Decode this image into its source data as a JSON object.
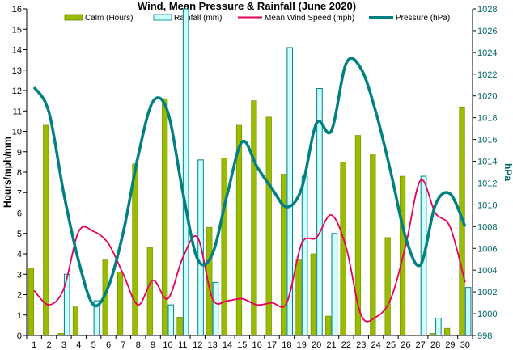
{
  "chart_data": {
    "type": "bar",
    "title": "Wind, Mean Pressure & Rainfall (June 2020)",
    "ylabel": "Hours/mph/mm",
    "y2label": "hPa",
    "ylim": [
      0,
      16
    ],
    "y2lim": [
      998,
      1028
    ],
    "yticks": [
      "0",
      "1",
      "2",
      "3",
      "4",
      "5",
      "6",
      "7",
      "8",
      "9",
      "10",
      "11",
      "12",
      "13",
      "14",
      "15",
      "16"
    ],
    "y2ticks": [
      "998",
      "1000",
      "1002",
      "1004",
      "1006",
      "1008",
      "1010",
      "1012",
      "1014",
      "1016",
      "1018",
      "1020",
      "1022",
      "1024",
      "1026",
      "1028"
    ],
    "categories": [
      "1",
      "2",
      "3",
      "4",
      "5",
      "6",
      "7",
      "8",
      "9",
      "10",
      "11",
      "12",
      "13",
      "14",
      "15",
      "16",
      "17",
      "18",
      "19",
      "20",
      "21",
      "22",
      "23",
      "24",
      "25",
      "26",
      "27",
      "28",
      "29",
      "30"
    ],
    "legend_position": "top",
    "grid": false,
    "series": [
      {
        "name": "Calm (Hours)",
        "kind": "bar",
        "axis": "left",
        "color": "#99bb00",
        "values": [
          3.3,
          10.3,
          0.1,
          1.4,
          0,
          3.7,
          3.1,
          8.4,
          4.3,
          11.6,
          0.9,
          0,
          5.3,
          8.7,
          10.3,
          11.5,
          10.7,
          7.9,
          3.7,
          4.0,
          0.95,
          8.5,
          9.8,
          8.9,
          4.8,
          7.8,
          0,
          0.1,
          0.35,
          11.2
        ]
      },
      {
        "name": "Rainfall (mm)",
        "kind": "bar",
        "axis": "left",
        "color": "#ccffff",
        "stroke": "#008080",
        "values": [
          0,
          0,
          3.0,
          0,
          1.7,
          0,
          0,
          0,
          0,
          1.5,
          16.0,
          8.6,
          2.6,
          0,
          0,
          0,
          0,
          14.1,
          7.8,
          12.1,
          5.0,
          0,
          0,
          0,
          0,
          0,
          7.8,
          0.85,
          0,
          2.35
        ]
      },
      {
        "name": "Mean Wind Speed (mph)",
        "kind": "line",
        "axis": "left",
        "color": "#e6005c",
        "values": [
          2.2,
          1.5,
          2.3,
          5.1,
          5.1,
          4.5,
          3.0,
          1.5,
          2.7,
          1.8,
          3.8,
          4.8,
          1.8,
          1.7,
          1.8,
          1.5,
          1.6,
          1.6,
          4.5,
          4.8,
          5.9,
          4.3,
          1.0,
          0.9,
          1.8,
          4.4,
          7.6,
          6.0,
          5.3,
          2.6
        ]
      },
      {
        "name": "Pressure (hPa)",
        "kind": "line",
        "axis": "right",
        "color": "#008080",
        "values": [
          1020.8,
          1018.5,
          1011.0,
          1004.8,
          1000.8,
          1002.5,
          1007.5,
          1014.5,
          1019.5,
          1018.5,
          1011.2,
          1005.0,
          1005.5,
          1011.0,
          1015.8,
          1013.5,
          1011.5,
          1009.8,
          1011.5,
          1017.5,
          1016.8,
          1023.0,
          1022.5,
          1018.5,
          1013.0,
          1007.0,
          1004.5,
          1010.0,
          1011.0,
          1008.0
        ]
      }
    ]
  }
}
